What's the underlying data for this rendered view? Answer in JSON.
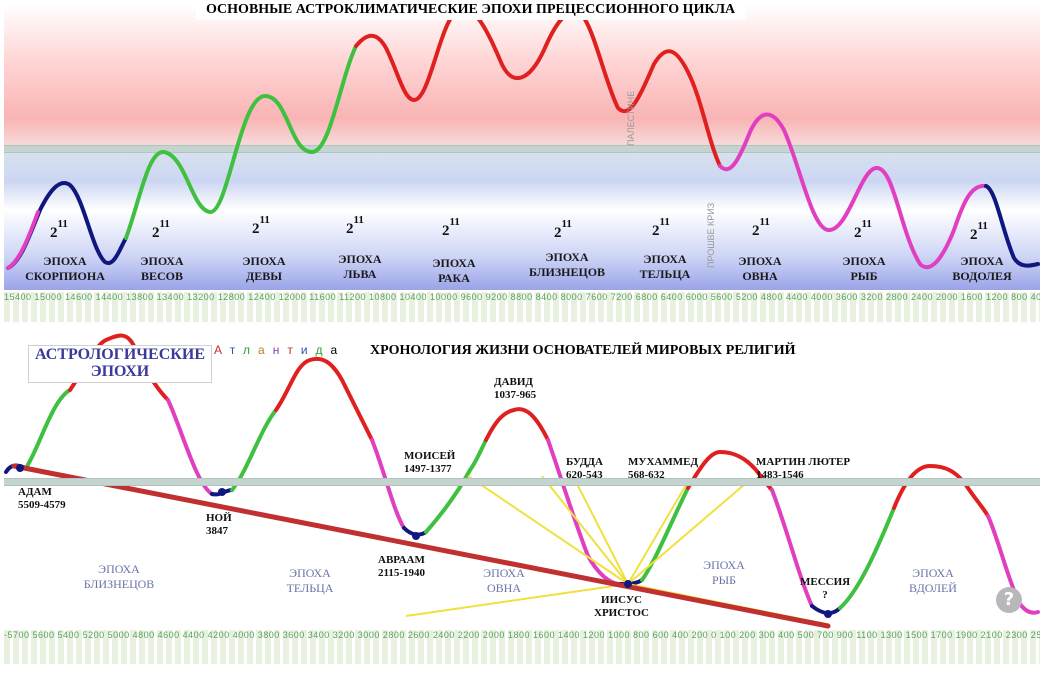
{
  "top": {
    "title": "ОСНОВНЫЕ АСТРОКЛИМАТИЧЕСКИЕ ЭПОХИ ПРЕЦЕССИОННОГО ЦИКЛА",
    "cycle_number": "2",
    "cycle_exponent": "11",
    "eras": [
      {
        "line1": "ЭПОХА",
        "line2": "СКОРПИОНА"
      },
      {
        "line1": "ЭПОХА",
        "line2": "ВЕСОВ"
      },
      {
        "line1": "ЭПОХА",
        "line2": "ДЕВЫ"
      },
      {
        "line1": "ЭПОХА",
        "line2": "ЛЬВА"
      },
      {
        "line1": "ЭПОХА",
        "line2": "РАКА"
      },
      {
        "line1": "ЭПОХА",
        "line2": "БЛИЗНЕЦОВ"
      },
      {
        "line1": "ЭПОХА",
        "line2": "ТЕЛЬЦА"
      },
      {
        "line1": "ЭПОХА",
        "line2": "ОВНА"
      },
      {
        "line1": "ЭПОХА",
        "line2": "РЫБ"
      },
      {
        "line1": "ЭПОХА",
        "line2": "ВОДОЛЕЯ"
      }
    ],
    "faint_labels": [
      "ПАЛЕСТИНЕ",
      "ПРОШВЕ КРИЗ"
    ],
    "ticks": "15400 15000 14600 14400 13800 13400 13200 12800 12400 12000 11600 11200 10800 10400 10000 9600 9200 8800 8400 8000 7600 7200 6800 6400 6000 5600 5200 4800 4400 4000 3600 3200 2800 2400 2000 1600 1200 800 400 0 400 800 1200 1600 2000 2400 2800 3200 3600 4000"
  },
  "bottom": {
    "title": "ХРОНОЛОГИЯ  ЖИЗНИ ОСНОВАТЕЛЕЙ МИРОВЫХ РЕЛИГИЙ",
    "astro_box": {
      "line1": "АСТРОЛОГИЧЕСКИЕ",
      "line2": "ЭПОХИ"
    },
    "atlantida_letters": [
      "А",
      "т",
      "л",
      "а",
      "н",
      "т",
      "и",
      "д",
      "а"
    ],
    "persons": [
      {
        "name": "АДАМ",
        "years": "5509-4579"
      },
      {
        "name": "НОЙ",
        "years": "3847"
      },
      {
        "name": "АВРААМ",
        "years": "2115-1940"
      },
      {
        "name": "МОИСЕЙ",
        "years": "1497-1377"
      },
      {
        "name": "ДАВИД",
        "years": "1037-965"
      },
      {
        "name": "БУДДА",
        "years": "620-543"
      },
      {
        "name": "МУХАММЕД",
        "years": "568-632"
      },
      {
        "name": "МАРТИН ЛЮТЕР",
        "years": "1483-1546"
      },
      {
        "name": "ИИСУС",
        "years": "ХРИСТОС"
      },
      {
        "name": "МЕССИЯ",
        "years": "?"
      }
    ],
    "epochs": [
      {
        "line1": "ЭПОХА",
        "line2": "БЛИЗНЕЦОВ"
      },
      {
        "line1": "ЭПОХА",
        "line2": "ТЕЛЬЦА"
      },
      {
        "line1": "ЭПОХА",
        "line2": "ОВНА"
      },
      {
        "line1": "ЭПОХА",
        "line2": "РЫБ"
      },
      {
        "line1": "ЭПОХА",
        "line2": "ВДОЛЕЙ"
      }
    ],
    "ticks": "-5700 5600 5400 5200 5000 4800 4600 4400 4200 4000 3800 3600 3400 3200 3000 2800 2600 2400 2200 2000 1800 1600 1400 1200 1000 800 600 400 200 0 100 200 300 400 500 700 900 1100 1300 1500 1700 1900 2100 2300 2500 2700 2900 3100 3300 3500 3700 3900"
  },
  "colors": {
    "warm_red": "#e02020",
    "green": "#40c040",
    "magenta": "#e040c0",
    "navy": "#101880",
    "chronology_line": "#c03030",
    "rays": "#f0e040"
  },
  "help_icon": "question-icon"
}
